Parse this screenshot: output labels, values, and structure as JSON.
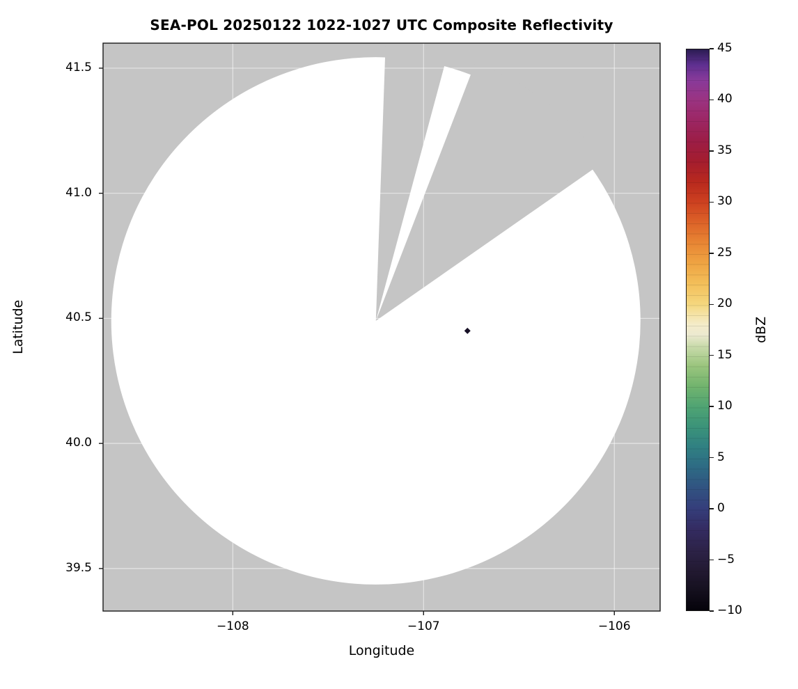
{
  "chart_data": {
    "type": "heatmap",
    "title": "SEA-POL 20250122 1022-1027 UTC Composite Reflectivity",
    "xlabel": "Longitude",
    "ylabel": "Latitude",
    "xlim": [
      -108.68,
      -105.76
    ],
    "ylim": [
      39.33,
      41.6
    ],
    "grid": true,
    "nodata_color": "#c5c5c5",
    "grid_color": "#ffffff",
    "x_ticks": [
      {
        "value": -108,
        "label": "−108"
      },
      {
        "value": -107,
        "label": "−107"
      },
      {
        "value": -106,
        "label": "−106"
      }
    ],
    "y_ticks": [
      {
        "value": 41.5,
        "label": "41.5"
      },
      {
        "value": 41.0,
        "label": "41.0"
      },
      {
        "value": 40.5,
        "label": "40.5"
      },
      {
        "value": 40.0,
        "label": "40.0"
      },
      {
        "value": 39.5,
        "label": "39.5"
      }
    ],
    "coverage": {
      "center_lon": -107.25,
      "center_lat": 40.49,
      "radius_lon_deg": 1.387,
      "radius_lat_deg": 1.054,
      "fill": "#ffffff"
    },
    "missing_sectors_deg": [
      {
        "start": 2,
        "end": 15
      },
      {
        "start": 21,
        "end": 55
      }
    ],
    "echo_points": [
      {
        "lon": -106.77,
        "lat": 40.45,
        "value_dbz": 45,
        "color": "#171026"
      }
    ],
    "colorbar": {
      "label": "dBZ",
      "vmin": -10,
      "vmax": 45,
      "ticks": [
        {
          "value": 45,
          "label": "45"
        },
        {
          "value": 40,
          "label": "40"
        },
        {
          "value": 35,
          "label": "35"
        },
        {
          "value": 30,
          "label": "30"
        },
        {
          "value": 25,
          "label": "25"
        },
        {
          "value": 20,
          "label": "20"
        },
        {
          "value": 15,
          "label": "15"
        },
        {
          "value": 10,
          "label": "10"
        },
        {
          "value": 5,
          "label": "5"
        },
        {
          "value": 0,
          "label": "0"
        },
        {
          "value": -5,
          "label": "−5"
        },
        {
          "value": -10,
          "label": "−10"
        }
      ],
      "stops": [
        {
          "v": -10,
          "c": "#05030a"
        },
        {
          "v": -8,
          "c": "#15101f"
        },
        {
          "v": -6,
          "c": "#231a33"
        },
        {
          "v": -4,
          "c": "#2d2349"
        },
        {
          "v": -2,
          "c": "#342c62"
        },
        {
          "v": 0,
          "c": "#353e7b"
        },
        {
          "v": 2,
          "c": "#315381"
        },
        {
          "v": 4,
          "c": "#2e6a84"
        },
        {
          "v": 6,
          "c": "#308082"
        },
        {
          "v": 8,
          "c": "#3b9379"
        },
        {
          "v": 10,
          "c": "#50a473"
        },
        {
          "v": 12,
          "c": "#72b46e"
        },
        {
          "v": 14,
          "c": "#9bc57e"
        },
        {
          "v": 16,
          "c": "#ccdcae"
        },
        {
          "v": 17,
          "c": "#ece9d0"
        },
        {
          "v": 18,
          "c": "#f4ecca"
        },
        {
          "v": 19,
          "c": "#f5e3a6"
        },
        {
          "v": 20,
          "c": "#f5d77e"
        },
        {
          "v": 22,
          "c": "#f3bf5a"
        },
        {
          "v": 24,
          "c": "#efa443"
        },
        {
          "v": 26,
          "c": "#e88634"
        },
        {
          "v": 28,
          "c": "#dd6328"
        },
        {
          "v": 30,
          "c": "#cd4120"
        },
        {
          "v": 32,
          "c": "#b8291e"
        },
        {
          "v": 34,
          "c": "#a41d2e"
        },
        {
          "v": 36,
          "c": "#9c1d46"
        },
        {
          "v": 38,
          "c": "#9c2663"
        },
        {
          "v": 40,
          "c": "#9b3381"
        },
        {
          "v": 42,
          "c": "#883a9a"
        },
        {
          "v": 43.5,
          "c": "#5e2f90"
        },
        {
          "v": 45,
          "c": "#2b1c52"
        }
      ]
    }
  }
}
